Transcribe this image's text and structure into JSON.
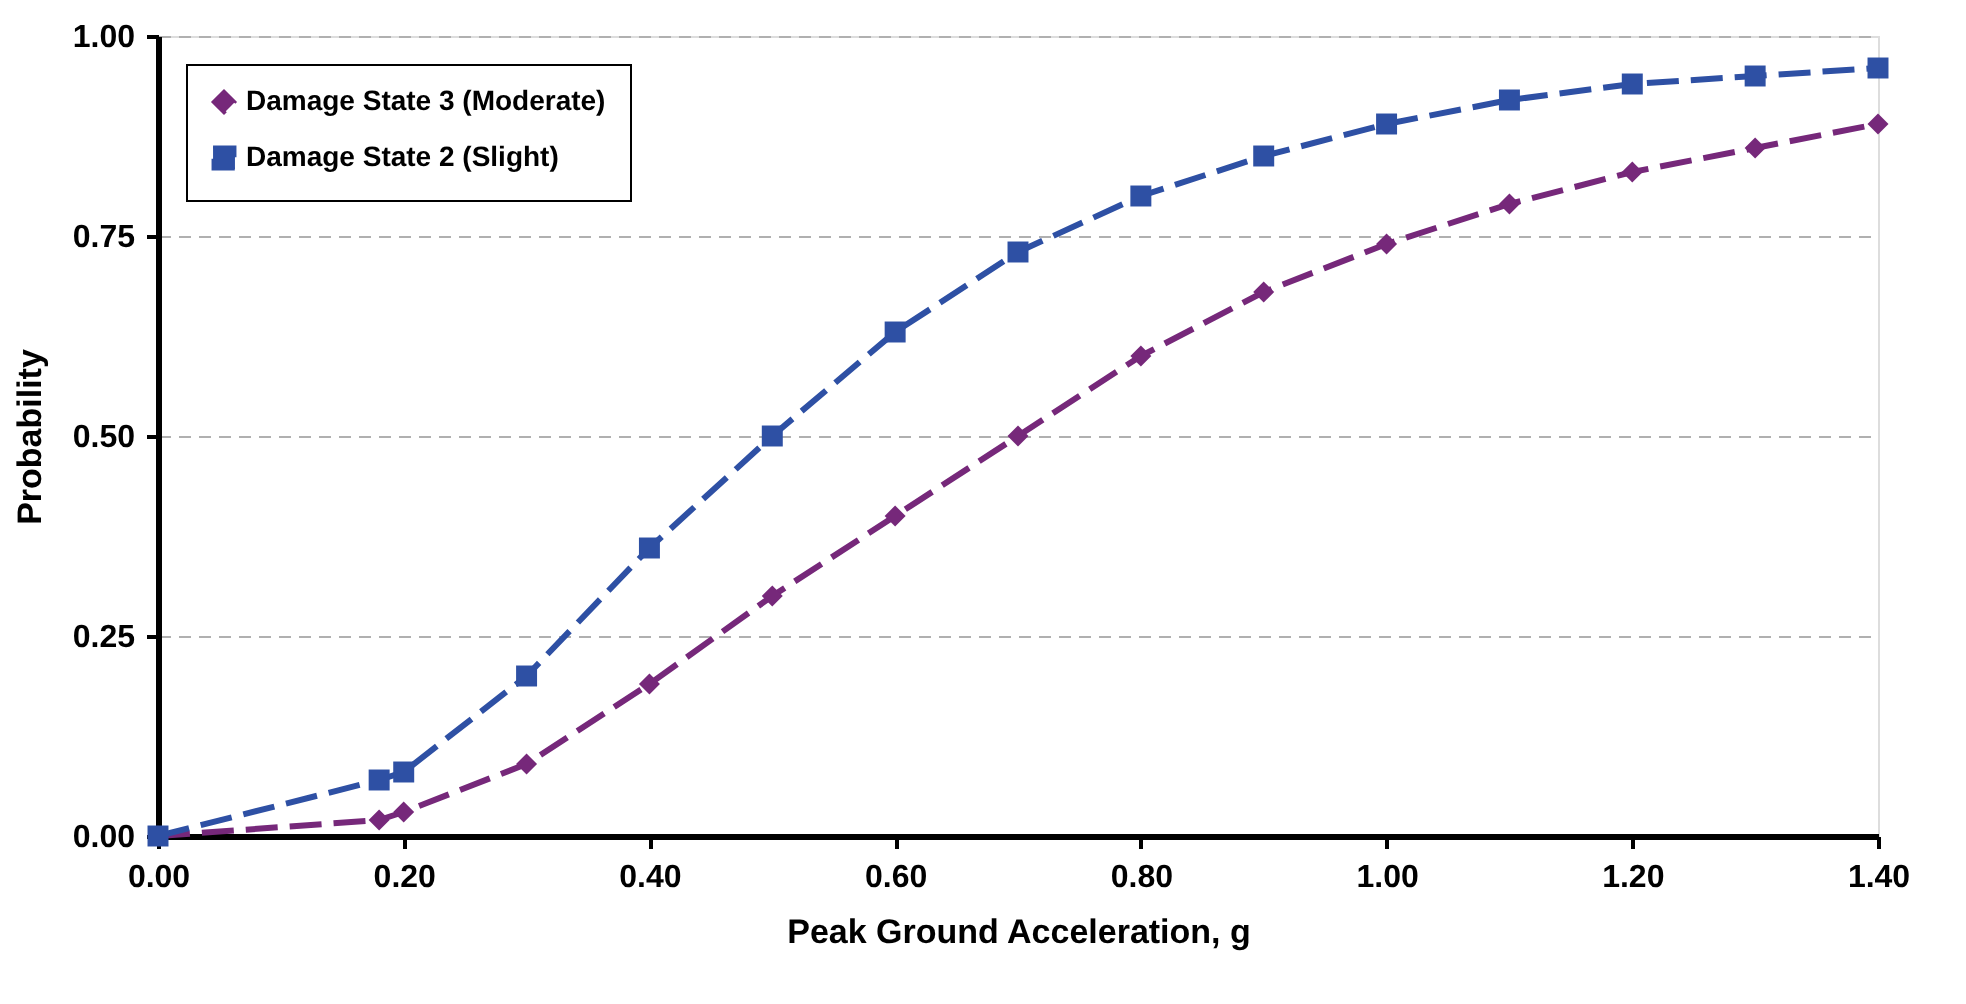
{
  "chart_data": {
    "type": "line",
    "xlabel": "Peak Ground Acceleration, g",
    "ylabel": "Probability",
    "x": [
      0,
      0.18,
      0.2,
      0.3,
      0.4,
      0.5,
      0.6,
      0.7,
      0.8,
      0.9,
      1.0,
      1.1,
      1.2,
      1.3,
      1.4
    ],
    "series": [
      {
        "name": "Damage State 3 (Moderate)",
        "color": "#76287a",
        "marker": "diamond",
        "line_style": "dashed",
        "values": [
          0,
          0.02,
          0.03,
          0.09,
          0.19,
          0.3,
          0.4,
          0.5,
          0.6,
          0.68,
          0.74,
          0.79,
          0.83,
          0.86,
          0.89
        ]
      },
      {
        "name": "Damage State 2 (Slight)",
        "color": "#2e50a4",
        "marker": "square",
        "line_style": "dashed",
        "values": [
          0,
          0.07,
          0.08,
          0.2,
          0.36,
          0.5,
          0.63,
          0.73,
          0.8,
          0.85,
          0.89,
          0.92,
          0.94,
          0.95,
          0.96
        ]
      }
    ],
    "xlim": [
      0,
      1.4
    ],
    "xticks": [
      {
        "value": 0,
        "label": "0.00"
      },
      {
        "value": 0.2,
        "label": "0.20"
      },
      {
        "value": 0.4,
        "label": "0.40"
      },
      {
        "value": 0.6,
        "label": "0.60"
      },
      {
        "value": 0.8,
        "label": "0.80"
      },
      {
        "value": 1.0,
        "label": "1.00"
      },
      {
        "value": 1.2,
        "label": "1.20"
      },
      {
        "value": 1.4,
        "label": "1.40"
      }
    ],
    "ylim": [
      0,
      1
    ],
    "yticks": [
      {
        "value": 0,
        "label": "0.00"
      },
      {
        "value": 0.25,
        "label": "0.25"
      },
      {
        "value": 0.5,
        "label": "0.50"
      },
      {
        "value": 0.75,
        "label": "0.75"
      },
      {
        "value": 1,
        "label": "1.00"
      }
    ],
    "grid": "y",
    "legend": "top left"
  }
}
